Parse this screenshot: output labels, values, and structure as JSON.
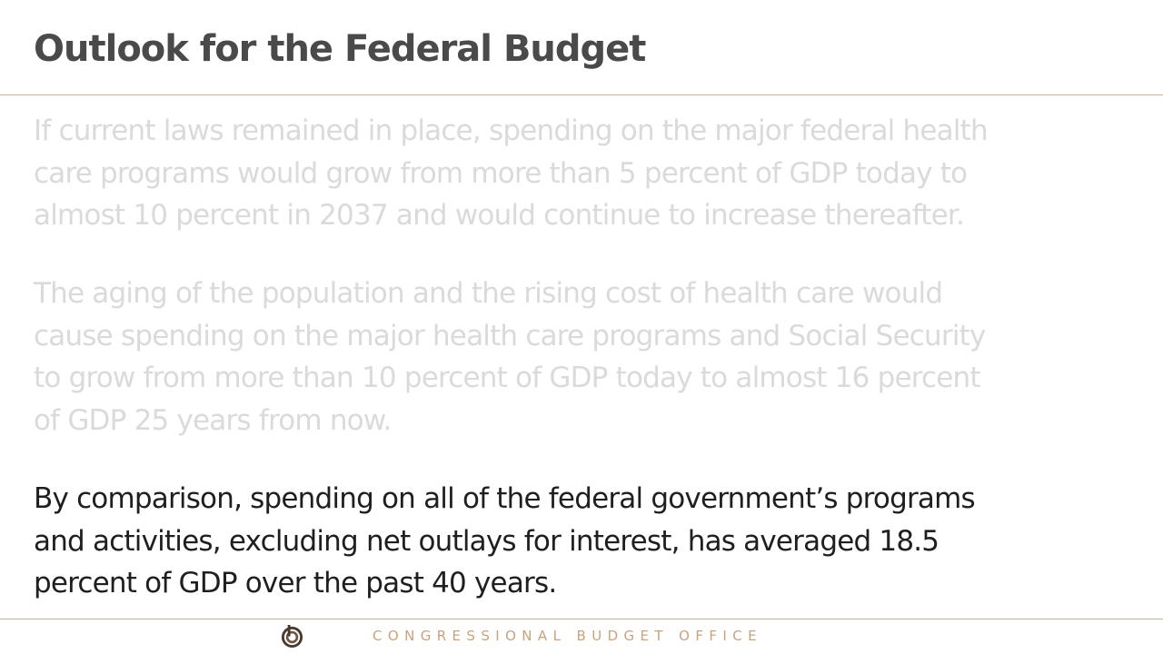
{
  "slide": {
    "title": "Outlook for the Federal Budget",
    "paragraphs": [
      "If current laws remained in place, spending on the major federal health\ncare programs would grow from more than 5 percent of GDP today to\nalmost 10 percent in 2037 and would continue to increase thereafter.",
      "The aging of the population and the rising cost of health care would\ncause spending on the major health care programs and Social Security\nto grow from more than 10 percent of GDP today to almost 16 percent\nof GDP 25 years from now.",
      "By comparison, spending on all of the federal government’s programs\nand activities, excluding net outlays for interest, has averaged 18.5\npercent of GDP over the past 40 years."
    ]
  },
  "footer": {
    "logo_icon": "cbo-logo-icon",
    "text": "CONGRESSIONAL BUDGET OFFICE"
  },
  "colors": {
    "title": "#4a4a4a",
    "rule": "#c9b297",
    "dim_text": "#dadada",
    "body_text": "#1f1f1f",
    "footer_text": "#c9a27d"
  }
}
